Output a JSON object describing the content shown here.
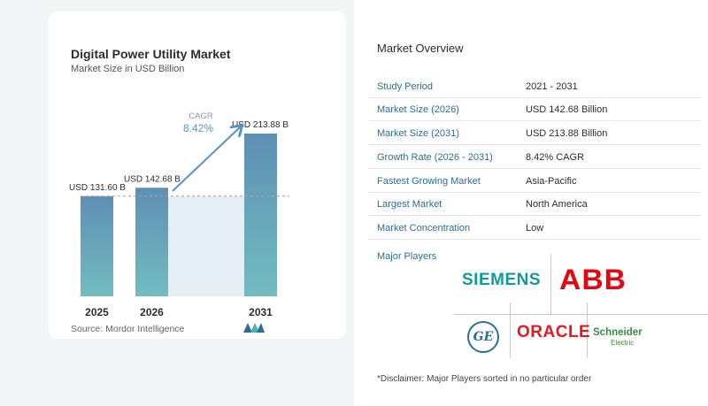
{
  "chart": {
    "title": "Digital Power Utility Market",
    "subtitle": "Market Size in USD Billion",
    "source": "Source: Mordor Intelligence"
  },
  "chart_data": {
    "type": "bar",
    "categories": [
      "2025",
      "2026",
      "2031"
    ],
    "values": [
      131.6,
      142.68,
      213.88
    ],
    "data_labels": [
      "USD 131.60 B",
      "USD 142.68 B",
      "USD 213.88 B"
    ],
    "title": "Digital Power Utility Market",
    "subtitle": "Market Size in USD Billion",
    "cagr_label": "CAGR",
    "cagr_value": "8.42%",
    "bar_color_top": "#5e8fb3",
    "bar_color_bottom": "#72bcc0",
    "reference_line": 131.6
  },
  "overview": {
    "title": "Market Overview",
    "rows": [
      {
        "label": "Study Period",
        "value": "2021 - 2031"
      },
      {
        "label": "Market Size (2026)",
        "value": "USD 142.68 Billion"
      },
      {
        "label": "Market Size (2031)",
        "value": "USD 213.88 Billion"
      },
      {
        "label": "Growth Rate (2026 - 2031)",
        "value": "8.42% CAGR"
      },
      {
        "label": "Fastest Growing Market",
        "value": "Asia-Pacific"
      },
      {
        "label": "Largest Market",
        "value": "North America"
      },
      {
        "label": "Market Concentration",
        "value": "Low"
      }
    ],
    "players_title": "Major Players",
    "players": {
      "siemens": "SIEMENS",
      "abb": "ABB",
      "ge": "GE",
      "oracle": "ORACLE",
      "schneider": "Schneider",
      "schneider_sub": "Electric"
    },
    "disclaimer": "*Disclaimer: Major Players sorted in no particular order"
  }
}
